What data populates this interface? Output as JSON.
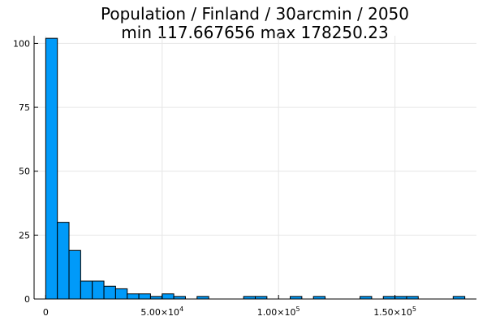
{
  "chart_data": {
    "type": "bar",
    "title": "Population / Finland / 30arcmin / 2050",
    "subtitle": "min 117.667656  max 178250.23",
    "xlabel": "",
    "ylabel": "",
    "bin_width": 5000,
    "bin_start": 0,
    "counts": [
      102,
      30,
      19,
      7,
      7,
      5,
      4,
      2,
      2,
      1,
      2,
      1,
      0,
      1,
      0,
      0,
      0,
      1,
      1,
      0,
      0,
      1,
      0,
      1,
      0,
      0,
      0,
      1,
      0,
      1,
      1,
      1,
      0,
      0,
      0,
      1
    ],
    "xlim": [
      -5000,
      185000
    ],
    "ylim": [
      0,
      103
    ],
    "x_ticks": [
      {
        "value": 0,
        "label": "0",
        "exp": ""
      },
      {
        "value": 50000,
        "label": "5.00×10",
        "exp": "4"
      },
      {
        "value": 100000,
        "label": "1.00×10",
        "exp": "5"
      },
      {
        "value": 150000,
        "label": "1.50×10",
        "exp": "5"
      }
    ],
    "y_ticks": [
      {
        "value": 0,
        "label": "0"
      },
      {
        "value": 25,
        "label": "25"
      },
      {
        "value": 50,
        "label": "50"
      },
      {
        "value": 75,
        "label": "75"
      },
      {
        "value": 100,
        "label": "100"
      }
    ],
    "grid": true,
    "legend": "none",
    "bar_color": "#009af9"
  }
}
